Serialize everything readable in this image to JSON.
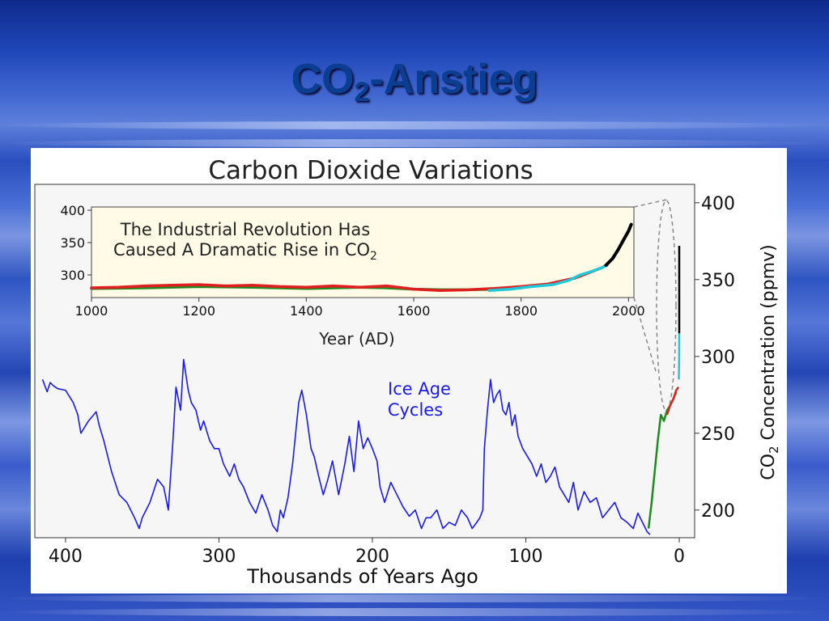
{
  "slide": {
    "title_main": "CO",
    "title_sub": "2",
    "title_rest": "-Anstieg"
  },
  "colors": {
    "background": "#2a4fbe",
    "title": "#0b3d91",
    "ice_core": "#1a1aee",
    "green": "#1f8a1f",
    "red": "#e02020",
    "cyan": "#20c8d8",
    "black": "#000000",
    "inset_bg": "#fffbe6"
  },
  "chart_data": [
    {
      "type": "line",
      "title": "Carbon Dioxide Variations",
      "xlabel": "Thousands of Years Ago",
      "ylabel_main": "CO",
      "ylabel_sub": "2",
      "ylabel_rest": " Concentration (ppmv)",
      "xlim": [
        420,
        -10
      ],
      "ylim": [
        182,
        412
      ],
      "x_ticks": [
        "400",
        "300",
        "200",
        "100",
        "0"
      ],
      "x_tick_values": [
        400,
        300,
        200,
        100,
        0
      ],
      "y_ticks": [
        "400",
        "350",
        "300",
        "250",
        "200"
      ],
      "y_tick_values": [
        400,
        350,
        300,
        250,
        200
      ],
      "annotation_lines": [
        "Ice Age",
        "Cycles"
      ],
      "series": [
        {
          "color": "blue",
          "x": [
            415,
            412,
            410,
            408,
            405,
            400,
            395,
            392,
            390,
            385,
            380,
            378,
            375,
            370,
            365,
            360,
            355,
            352,
            350,
            345,
            340,
            336,
            333,
            330,
            328,
            325,
            323,
            320,
            318,
            315,
            312,
            310,
            306,
            303,
            300,
            297,
            293,
            290,
            287,
            284,
            280,
            276,
            272,
            268,
            265,
            262,
            260,
            258,
            255,
            252,
            248,
            246,
            243,
            240,
            238,
            235,
            232,
            229,
            226,
            222,
            218,
            215,
            212,
            209,
            206,
            203,
            200,
            197,
            195,
            192,
            188,
            184,
            180,
            176,
            172,
            168,
            165,
            162,
            158,
            154,
            150,
            146,
            142,
            138,
            135,
            132,
            130,
            128,
            127,
            125,
            123,
            121,
            119,
            117,
            115,
            113,
            111,
            109,
            107,
            105,
            102,
            99,
            96,
            93,
            90,
            87,
            84,
            81,
            78,
            75,
            72,
            69,
            66,
            62,
            58,
            54,
            50,
            46,
            42,
            38,
            34,
            30,
            27,
            24,
            21,
            19
          ],
          "y": [
            285,
            277,
            283,
            281,
            279,
            278,
            270,
            262,
            250,
            258,
            264,
            255,
            245,
            225,
            210,
            205,
            195,
            188,
            195,
            205,
            220,
            215,
            200,
            245,
            280,
            265,
            298,
            278,
            270,
            265,
            252,
            258,
            245,
            240,
            240,
            230,
            222,
            230,
            220,
            215,
            205,
            198,
            210,
            200,
            190,
            186,
            200,
            195,
            208,
            230,
            270,
            278,
            262,
            240,
            235,
            222,
            210,
            220,
            232,
            210,
            230,
            248,
            225,
            258,
            240,
            247,
            240,
            232,
            215,
            205,
            218,
            210,
            202,
            196,
            200,
            188,
            195,
            195,
            200,
            188,
            192,
            190,
            200,
            195,
            188,
            192,
            195,
            200,
            240,
            265,
            285,
            270,
            275,
            278,
            265,
            262,
            270,
            255,
            262,
            248,
            240,
            235,
            230,
            222,
            230,
            218,
            222,
            228,
            215,
            210,
            205,
            218,
            200,
            212,
            205,
            208,
            195,
            200,
            205,
            195,
            192,
            188,
            198,
            192,
            186,
            184
          ]
        },
        {
          "color": "green",
          "x": [
            20,
            18,
            16,
            14,
            12,
            10,
            8,
            6,
            4,
            2
          ],
          "y": [
            188,
            205,
            225,
            245,
            262,
            258,
            265,
            268,
            272,
            277
          ]
        },
        {
          "color": "red",
          "x": [
            8,
            6,
            4,
            2,
            0.5
          ],
          "y": [
            262,
            268,
            272,
            278,
            280
          ]
        },
        {
          "color": "cyan",
          "x": [
            0.3,
            0.1,
            0.05
          ],
          "y": [
            285,
            300,
            315
          ]
        },
        {
          "color": "black",
          "x": [
            0.05,
            0.02,
            0
          ],
          "y": [
            315,
            345,
            372
          ]
        }
      ]
    },
    {
      "type": "line",
      "inset": true,
      "xlabel": "Year (AD)",
      "annotation_line1": "The Industrial Revolution Has",
      "annotation_line2_main": "Caused A Dramatic Rise in CO",
      "annotation_line2_sub": "2",
      "xlim": [
        1000,
        2010
      ],
      "ylim": [
        265,
        405
      ],
      "x_ticks": [
        "1000",
        "1200",
        "1400",
        "1600",
        "1800",
        "2000"
      ],
      "x_tick_values": [
        1000,
        1200,
        1400,
        1600,
        1800,
        2000
      ],
      "y_ticks": [
        "400",
        "350",
        "300"
      ],
      "y_tick_values": [
        400,
        350,
        300
      ],
      "series": [
        {
          "color": "green",
          "x": [
            1000,
            1100,
            1200,
            1300,
            1400,
            1500,
            1550,
            1600,
            1650,
            1700,
            1750,
            1800
          ],
          "y": [
            279,
            280,
            282,
            281,
            279,
            281,
            280,
            278,
            277,
            277,
            278,
            280
          ]
        },
        {
          "color": "red",
          "x": [
            1000,
            1050,
            1100,
            1150,
            1200,
            1250,
            1300,
            1350,
            1400,
            1450,
            1500,
            1550,
            1600,
            1650,
            1700,
            1750,
            1800,
            1850,
            1900,
            1950,
            1960
          ],
          "y": [
            280,
            281,
            283,
            284,
            285,
            283,
            284,
            282,
            281,
            283,
            281,
            283,
            278,
            276,
            277,
            279,
            282,
            286,
            295,
            311,
            316
          ]
        },
        {
          "color": "cyan",
          "x": [
            1740,
            1780,
            1820,
            1860,
            1890,
            1910,
            1930,
            1950,
            1960
          ],
          "y": [
            276,
            278,
            282,
            285,
            292,
            300,
            305,
            311,
            315
          ]
        },
        {
          "color": "black",
          "x": [
            1958,
            1970,
            1980,
            1990,
            2000,
            2005
          ],
          "y": [
            315,
            325,
            338,
            353,
            368,
            378
          ]
        }
      ]
    }
  ]
}
